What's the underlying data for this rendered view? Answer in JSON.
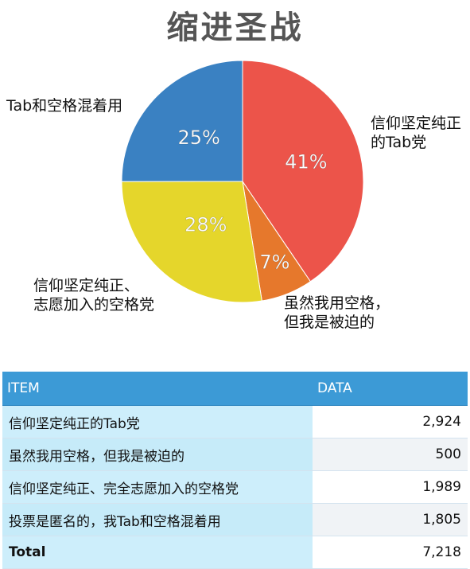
{
  "title": "缩进圣战",
  "chart_data": {
    "type": "pie",
    "slices": [
      {
        "label": "信仰坚定纯正的Tab党",
        "value": 2924,
        "percent_label": "41%",
        "color": "#ec544a"
      },
      {
        "label": "虽然我用空格，但我是被迫的",
        "value": 500,
        "percent_label": "7%",
        "color": "#e6782c"
      },
      {
        "label": "信仰坚定纯正、志愿加入的空格党",
        "value": 1989,
        "percent_label": "28%",
        "color": "#e5d62b"
      },
      {
        "label": "Tab和空格混着用",
        "value": 1805,
        "percent_label": "25%",
        "color": "#3a81c2"
      }
    ]
  },
  "labels": {
    "tab_mix": "Tab和空格混着用",
    "tab_party": [
      "信仰坚定纯正",
      "的Tab党"
    ],
    "space_party": [
      "信仰坚定纯正、",
      "志愿加入的空格党"
    ],
    "forced": [
      "虽然我用空格，",
      "但我是被迫的"
    ]
  },
  "table": {
    "headers": [
      "ITEM",
      "DATA"
    ],
    "rows": [
      {
        "item": "信仰坚定纯正的Tab党",
        "data": "2,924"
      },
      {
        "item": "虽然我用空格，但我是被迫的",
        "data": "500"
      },
      {
        "item": "信仰坚定纯正、完全志愿加入的空格党",
        "data": "1,989"
      },
      {
        "item": "投票是匿名的，我Tab和空格混着用",
        "data": "1,805"
      },
      {
        "item": "Total",
        "data": "7,218"
      }
    ]
  }
}
